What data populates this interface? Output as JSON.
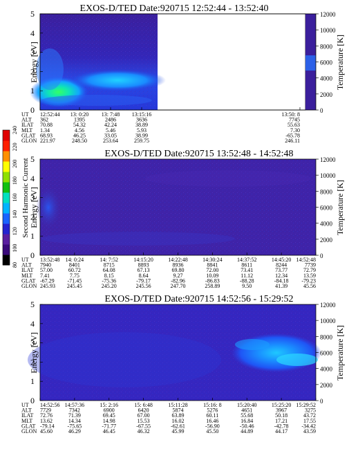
{
  "figure": {
    "colorbar": {
      "label": "Second Harmonic Current",
      "ticks": [
        "80",
        "100",
        "120",
        "140",
        "160",
        "180",
        "200",
        "220",
        "240"
      ],
      "colors": [
        "#000000",
        "#3a0a7a",
        "#5a1fa0",
        "#2424d0",
        "#1a64ff",
        "#00b4ff",
        "#00e0c0",
        "#10c010",
        "#90e000",
        "#ffff00",
        "#ff9000",
        "#ff2000",
        "#e00000"
      ]
    }
  },
  "chart_data": [
    {
      "type": "heatmap",
      "title": "EXOS-D/TED   Date:920715   12:52:44 - 13:52:40",
      "ylabel": "Energy [eV]",
      "ylim": [
        0,
        5
      ],
      "y_ticks": [
        "0",
        "1",
        "2",
        "3",
        "4",
        "5"
      ],
      "right_label": "Temperature [K]",
      "right_lim": [
        0,
        12000
      ],
      "right_ticks": [
        "0",
        "2000",
        "4000",
        "6000",
        "8000",
        "10000",
        "12000"
      ],
      "data_extent_fraction": 0.4,
      "row_labels": [
        "UT",
        "ALT",
        "ILAT",
        "MLT",
        "GLAT",
        "GLON"
      ],
      "columns": [
        {
          "UT": "12:52:44",
          "ALT": "362",
          "ILAT": "70.88",
          "MLT": "1.34",
          "GLAT": "68.93",
          "GLON": "221.97"
        },
        {
          "UT": "13: 0:20",
          "ALT": "1395",
          "ILAT": "54.32",
          "MLT": "4.56",
          "GLAT": "46.25",
          "GLON": "248.50"
        },
        {
          "UT": "13: 7:48",
          "ALT": "2486",
          "ILAT": "42.24",
          "MLT": "5.46",
          "GLAT": "33.05",
          "GLON": "253.64"
        },
        {
          "UT": "13:15:16",
          "ALT": "3636",
          "ILAT": "38.89",
          "MLT": "5.93",
          "GLAT": "38.99",
          "GLON": "259.75"
        },
        {
          "UT": "13:50: 8",
          "ALT": "7745",
          "ILAT": "55.63",
          "MLT": "7.30",
          "GLAT": "-65.78",
          "GLON": "246.11"
        }
      ]
    },
    {
      "type": "heatmap",
      "title": "EXOS-D/TED   Date:920715   13:52:48 - 14:52:48",
      "ylabel": "Energy [eV]",
      "ylim": [
        0,
        5
      ],
      "y_ticks": [
        "0",
        "1",
        "2",
        "3",
        "4",
        "5"
      ],
      "right_label": "Temperature [K]",
      "right_lim": [
        0,
        12000
      ],
      "right_ticks": [
        "0",
        "2000",
        "4000",
        "6000",
        "8000",
        "10000",
        "12000"
      ],
      "data_extent_fraction": 1.0,
      "row_labels": [
        "UT",
        "ALT",
        "ILAT",
        "MLT",
        "GLAT",
        "GLON"
      ],
      "columns": [
        {
          "UT": "13:52:48",
          "ALT": "7940",
          "ILAT": "57.00",
          "MLT": "7.41",
          "GLAT": "-67.29",
          "GLON": "245.93"
        },
        {
          "UT": "14: 0:24",
          "ALT": "8401",
          "ILAT": "60.72",
          "MLT": "7.75",
          "GLAT": "-71.45",
          "GLON": "245.45"
        },
        {
          "UT": "14: 7:52",
          "ALT": "8715",
          "ILAT": "64.08",
          "MLT": "8.15",
          "GLAT": "-75.36",
          "GLON": "245.20"
        },
        {
          "UT": "14:15:20",
          "ALT": "8893",
          "ILAT": "67.13",
          "MLT": "8.64",
          "GLAT": "-79.17",
          "GLON": "245.56"
        },
        {
          "UT": "14:22:48",
          "ALT": "8936",
          "ILAT": "69.80",
          "MLT": "9.27",
          "GLAT": "-82.96",
          "GLON": "247.70"
        },
        {
          "UT": "14:30:24",
          "ALT": "8841",
          "ILAT": "72.00",
          "MLT": "10.09",
          "GLAT": "-86.83",
          "GLON": "258.89"
        },
        {
          "UT": "14:37:52",
          "ALT": "8611",
          "ILAT": "73.41",
          "MLT": "11.12",
          "GLAT": "-88.28",
          "GLON": "9.50"
        },
        {
          "UT": "14:45:20",
          "ALT": "8244",
          "ILAT": "73.77",
          "MLT": "12.34",
          "GLAT": "-84.18",
          "GLON": "41.39"
        },
        {
          "UT": "14:52:48",
          "ALT": "7739",
          "ILAT": "72.79",
          "MLT": "13.59",
          "GLAT": "-79.23",
          "GLON": "45.56"
        }
      ]
    },
    {
      "type": "heatmap",
      "title": "EXOS-D/TED   Date:920715   14:52:56 - 15:29:52",
      "ylabel": "Energy [eV]",
      "ylim": [
        0,
        5
      ],
      "y_ticks": [
        "0",
        "1",
        "2",
        "3",
        "4",
        "5"
      ],
      "right_label": "Temperature [K]",
      "right_lim": [
        0,
        12000
      ],
      "right_ticks": [
        "0",
        "2000",
        "4000",
        "6000",
        "8000",
        "10000",
        "12000"
      ],
      "data_extent_fraction": 1.0,
      "row_labels": [
        "UT",
        "ALT",
        "ILAT",
        "MLT",
        "GLAT",
        "GLON"
      ],
      "columns": [
        {
          "UT": "14:52:56",
          "ALT": "7729",
          "ILAT": "72.76",
          "MLT": "13.62",
          "GLAT": "-79.14",
          "GLON": "45.60"
        },
        {
          "UT": "14:57:36",
          "ALT": "7342",
          "ILAT": "71.39",
          "MLT": "14.34",
          "GLAT": "-75.65",
          "GLON": "46.29"
        },
        {
          "UT": "15: 2:16",
          "ALT": "6900",
          "ILAT": "69.45",
          "MLT": "14.98",
          "GLAT": "-71.77",
          "GLON": "46.45"
        },
        {
          "UT": "15: 6:48",
          "ALT": "6420",
          "ILAT": "67.00",
          "MLT": "15.53",
          "GLAT": "-67.55",
          "GLON": "46.32"
        },
        {
          "UT": "15:11:28",
          "ALT": "5874",
          "ILAT": "63.89",
          "MLT": "16.02",
          "GLAT": "-62.61",
          "GLON": "45.99"
        },
        {
          "UT": "15:16: 8",
          "ALT": "5276",
          "ILAT": "60.11",
          "MLT": "16.46",
          "GLAT": "-56.90",
          "GLON": "45.50"
        },
        {
          "UT": "15:20:40",
          "ALT": "4651",
          "ILAT": "55.68",
          "MLT": "16.84",
          "GLAT": "-50.46",
          "GLON": "44.89"
        },
        {
          "UT": "15:25:20",
          "ALT": "3967",
          "ILAT": "50.18",
          "MLT": "17.21",
          "GLAT": "-42.78",
          "GLON": "44.17"
        },
        {
          "UT": "15:29:52",
          "ALT": "3275",
          "ILAT": "43.72",
          "MLT": "17.55",
          "GLAT": "-34.42",
          "GLON": "43.59"
        }
      ]
    }
  ]
}
